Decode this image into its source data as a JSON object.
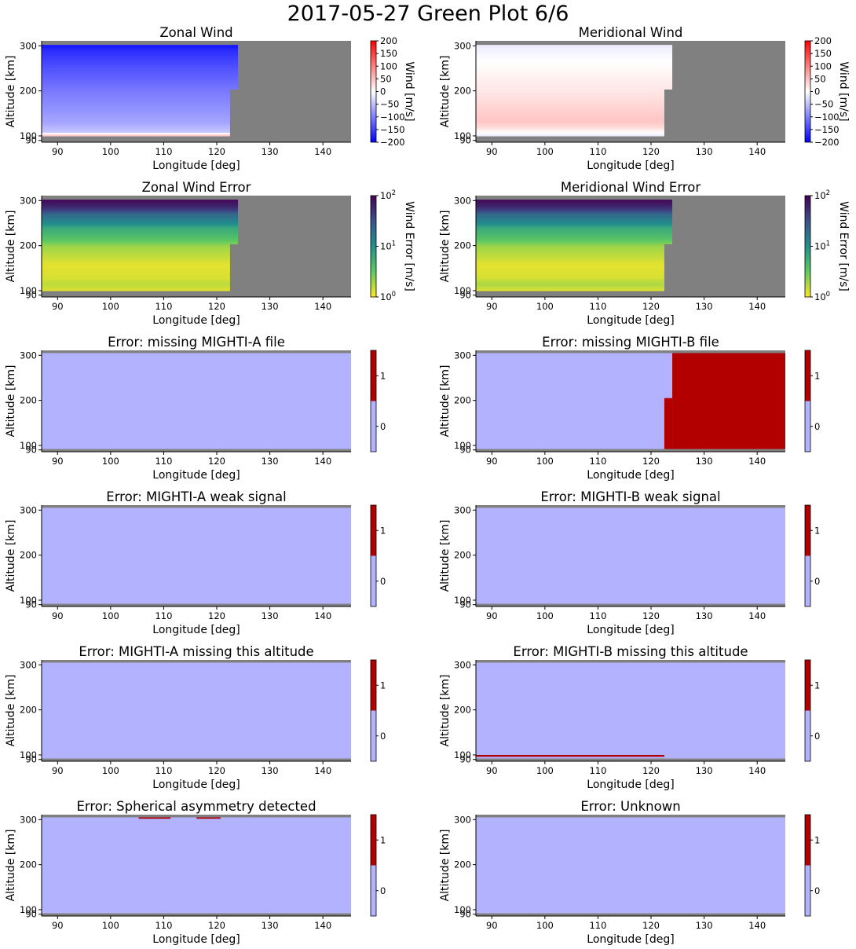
{
  "figure": {
    "title": "2017-05-27 Green Plot 6/6"
  },
  "colors": {
    "no_data": "#808080",
    "flag_zero": "#b2b2ff",
    "flag_one": "#b20000",
    "wind_neg": "#0000ff",
    "wind_zero": "#ffffff",
    "wind_pos": "#ff0000",
    "viridis": [
      "#440154",
      "#3b528b",
      "#21918c",
      "#5ec962",
      "#fde725"
    ]
  },
  "chart_data": [
    {
      "type": "heatmap",
      "title": "Zonal Wind",
      "xlabel": "Longitude [deg]",
      "ylabel": "Altitude [km]",
      "xlim": [
        87,
        145.3
      ],
      "ylim": [
        86,
        311
      ],
      "xticks": [
        90,
        100,
        110,
        120,
        130,
        140
      ],
      "yticks": [
        90,
        100,
        200,
        300
      ],
      "colorbar": {
        "label": "Wind [m/s]",
        "scale": "linear",
        "range": [
          -200,
          200
        ],
        "ticks": [
          -200,
          -150,
          -100,
          -50,
          0,
          50,
          100,
          150,
          200
        ],
        "tick_labels": [
          "−200",
          "−150",
          "−100",
          "−50",
          "0",
          "50",
          "100",
          "150",
          "200"
        ]
      },
      "data_extent": {
        "lon_start": 87,
        "lon_end_low": 122.5,
        "lon_end_high": 124,
        "alt_break": 205,
        "alt_min": 100,
        "alt_max": 302
      },
      "profile": [
        {
          "alt": 100,
          "value": 45
        },
        {
          "alt": 104,
          "value": 40
        },
        {
          "alt": 106,
          "value": -5
        },
        {
          "alt": 110,
          "value": -45
        },
        {
          "alt": 130,
          "value": -70
        },
        {
          "alt": 160,
          "value": -85
        },
        {
          "alt": 200,
          "value": -105
        },
        {
          "alt": 250,
          "value": -135
        },
        {
          "alt": 290,
          "value": -165
        },
        {
          "alt": 302,
          "value": -185
        }
      ]
    },
    {
      "type": "heatmap",
      "title": "Meridional Wind",
      "xlabel": "Longitude [deg]",
      "ylabel": "Altitude [km]",
      "xlim": [
        87,
        145.3
      ],
      "ylim": [
        86,
        311
      ],
      "xticks": [
        90,
        100,
        110,
        120,
        130,
        140
      ],
      "yticks": [
        90,
        100,
        200,
        300
      ],
      "colorbar": {
        "label": "Wind [m/s]",
        "scale": "linear",
        "range": [
          -200,
          200
        ],
        "ticks": [
          -200,
          -150,
          -100,
          -50,
          0,
          50,
          100,
          150,
          200
        ],
        "tick_labels": [
          "−200",
          "−150",
          "−100",
          "−50",
          "0",
          "50",
          "100",
          "150",
          "200"
        ]
      },
      "data_extent": {
        "lon_start": 87,
        "lon_end_low": 122.5,
        "lon_end_high": 124,
        "alt_break": 205,
        "alt_min": 100,
        "alt_max": 302
      },
      "profile": [
        {
          "alt": 100,
          "value": -20
        },
        {
          "alt": 110,
          "value": 5
        },
        {
          "alt": 120,
          "value": 30
        },
        {
          "alt": 135,
          "value": 45
        },
        {
          "alt": 160,
          "value": 35
        },
        {
          "alt": 200,
          "value": 20
        },
        {
          "alt": 250,
          "value": 5
        },
        {
          "alt": 290,
          "value": -10
        },
        {
          "alt": 302,
          "value": -15
        }
      ]
    },
    {
      "type": "heatmap",
      "title": "Zonal Wind Error",
      "xlabel": "Longitude [deg]",
      "ylabel": "Altitude [km]",
      "xlim": [
        87,
        145.3
      ],
      "ylim": [
        86,
        311
      ],
      "xticks": [
        90,
        100,
        110,
        120,
        130,
        140
      ],
      "yticks": [
        90,
        100,
        200,
        300
      ],
      "colorbar": {
        "label": "Wind Error [m/s]",
        "scale": "log",
        "range": [
          1,
          100
        ],
        "ticks": [
          1,
          10,
          100
        ],
        "tick_labels": [
          "10",
          "10",
          "10"
        ],
        "tick_exponents": [
          "0",
          "1",
          "2"
        ]
      },
      "data_extent": {
        "lon_start": 87,
        "lon_end_low": 122.5,
        "lon_end_high": 124,
        "alt_break": 205,
        "alt_min": 100,
        "alt_max": 302
      },
      "profile": [
        {
          "alt": 100,
          "value": 1.2
        },
        {
          "alt": 115,
          "value": 1.6
        },
        {
          "alt": 130,
          "value": 1.3
        },
        {
          "alt": 160,
          "value": 1.2
        },
        {
          "alt": 200,
          "value": 2.0
        },
        {
          "alt": 240,
          "value": 6
        },
        {
          "alt": 270,
          "value": 20
        },
        {
          "alt": 302,
          "value": 90
        }
      ]
    },
    {
      "type": "heatmap",
      "title": "Meridional Wind Error",
      "xlabel": "Longitude [deg]",
      "ylabel": "Altitude [km]",
      "xlim": [
        87,
        145.3
      ],
      "ylim": [
        86,
        311
      ],
      "xticks": [
        90,
        100,
        110,
        120,
        130,
        140
      ],
      "yticks": [
        90,
        100,
        200,
        300
      ],
      "colorbar": {
        "label": "Wind Error [m/s]",
        "scale": "log",
        "range": [
          1,
          100
        ],
        "ticks": [
          1,
          10,
          100
        ],
        "tick_labels": [
          "10",
          "10",
          "10"
        ],
        "tick_exponents": [
          "0",
          "1",
          "2"
        ]
      },
      "data_extent": {
        "lon_start": 87,
        "lon_end_low": 122.5,
        "lon_end_high": 124,
        "alt_break": 205,
        "alt_min": 100,
        "alt_max": 302
      },
      "profile": [
        {
          "alt": 100,
          "value": 1.2
        },
        {
          "alt": 115,
          "value": 1.8
        },
        {
          "alt": 130,
          "value": 1.3
        },
        {
          "alt": 160,
          "value": 1.2
        },
        {
          "alt": 200,
          "value": 2.0
        },
        {
          "alt": 240,
          "value": 6
        },
        {
          "alt": 270,
          "value": 20
        },
        {
          "alt": 302,
          "value": 90
        }
      ]
    },
    {
      "type": "heatmap",
      "title": "Error: missing MIGHTI-A file",
      "xlabel": "Longitude [deg]",
      "ylabel": "Altitude [km]",
      "xlim": [
        87,
        145.3
      ],
      "ylim": [
        86,
        311
      ],
      "xticks": [
        90,
        100,
        110,
        120,
        130,
        140
      ],
      "yticks": [
        90,
        100,
        200,
        300
      ],
      "colorbar": {
        "scale": "flag",
        "range": [
          -0.5,
          1.5
        ],
        "ticks": [
          0,
          1
        ],
        "tick_labels": [
          "0",
          "1"
        ]
      },
      "valid_alt": [
        92,
        305
      ],
      "flagged_regions": []
    },
    {
      "type": "heatmap",
      "title": "Error: missing MIGHTI-B file",
      "xlabel": "Longitude [deg]",
      "ylabel": "Altitude [km]",
      "xlim": [
        87,
        145.3
      ],
      "ylim": [
        86,
        311
      ],
      "xticks": [
        90,
        100,
        110,
        120,
        130,
        140
      ],
      "yticks": [
        90,
        100,
        200,
        300
      ],
      "colorbar": {
        "scale": "flag",
        "range": [
          -0.5,
          1.5
        ],
        "ticks": [
          0,
          1
        ],
        "tick_labels": [
          "0",
          "1"
        ]
      },
      "valid_alt": [
        92,
        305
      ],
      "flagged_regions": [
        {
          "lon": [
            124,
            145.3
          ],
          "alt": [
            92,
            305
          ]
        },
        {
          "lon": [
            122.5,
            124
          ],
          "alt": [
            92,
            205
          ]
        }
      ]
    },
    {
      "type": "heatmap",
      "title": "Error: MIGHTI-A weak signal",
      "xlabel": "Longitude [deg]",
      "ylabel": "Altitude [km]",
      "xlim": [
        87,
        145.3
      ],
      "ylim": [
        86,
        311
      ],
      "xticks": [
        90,
        100,
        110,
        120,
        130,
        140
      ],
      "yticks": [
        90,
        100,
        200,
        300
      ],
      "colorbar": {
        "scale": "flag",
        "range": [
          -0.5,
          1.5
        ],
        "ticks": [
          0,
          1
        ],
        "tick_labels": [
          "0",
          "1"
        ]
      },
      "valid_alt": [
        92,
        305
      ],
      "flagged_regions": []
    },
    {
      "type": "heatmap",
      "title": "Error: MIGHTI-B weak signal",
      "xlabel": "Longitude [deg]",
      "ylabel": "Altitude [km]",
      "xlim": [
        87,
        145.3
      ],
      "ylim": [
        86,
        311
      ],
      "xticks": [
        90,
        100,
        110,
        120,
        130,
        140
      ],
      "yticks": [
        90,
        100,
        200,
        300
      ],
      "colorbar": {
        "scale": "flag",
        "range": [
          -0.5,
          1.5
        ],
        "ticks": [
          0,
          1
        ],
        "tick_labels": [
          "0",
          "1"
        ]
      },
      "valid_alt": [
        92,
        305
      ],
      "flagged_regions": []
    },
    {
      "type": "heatmap",
      "title": "Error: MIGHTI-A missing this altitude",
      "xlabel": "Longitude [deg]",
      "ylabel": "Altitude [km]",
      "xlim": [
        87,
        145.3
      ],
      "ylim": [
        86,
        311
      ],
      "xticks": [
        90,
        100,
        110,
        120,
        130,
        140
      ],
      "yticks": [
        90,
        100,
        200,
        300
      ],
      "colorbar": {
        "scale": "flag",
        "range": [
          -0.5,
          1.5
        ],
        "ticks": [
          0,
          1
        ],
        "tick_labels": [
          "0",
          "1"
        ]
      },
      "valid_alt": [
        92,
        305
      ],
      "flagged_regions": []
    },
    {
      "type": "heatmap",
      "title": "Error: MIGHTI-B missing this altitude",
      "xlabel": "Longitude [deg]",
      "ylabel": "Altitude [km]",
      "xlim": [
        87,
        145.3
      ],
      "ylim": [
        86,
        311
      ],
      "xticks": [
        90,
        100,
        110,
        120,
        130,
        140
      ],
      "yticks": [
        90,
        100,
        200,
        300
      ],
      "colorbar": {
        "scale": "flag",
        "range": [
          -0.5,
          1.5
        ],
        "ticks": [
          0,
          1
        ],
        "tick_labels": [
          "0",
          "1"
        ]
      },
      "valid_alt": [
        92,
        305
      ],
      "flagged_regions": [
        {
          "lon": [
            87,
            122.5
          ],
          "alt": [
            96,
            100
          ]
        }
      ]
    },
    {
      "type": "heatmap",
      "title": "Error: Spherical asymmetry detected",
      "xlabel": "Longitude [deg]",
      "ylabel": "Altitude [km]",
      "xlim": [
        87,
        145.3
      ],
      "ylim": [
        86,
        311
      ],
      "xticks": [
        90,
        100,
        110,
        120,
        130,
        140
      ],
      "yticks": [
        90,
        100,
        200,
        300
      ],
      "colorbar": {
        "scale": "flag",
        "range": [
          -0.5,
          1.5
        ],
        "ticks": [
          0,
          1
        ],
        "tick_labels": [
          "0",
          "1"
        ]
      },
      "valid_alt": [
        92,
        305
      ],
      "flagged_regions": [
        {
          "lon": [
            105.3,
            111.3
          ],
          "alt": [
            302,
            305
          ]
        },
        {
          "lon": [
            116.2,
            120.7
          ],
          "alt": [
            302,
            305
          ]
        }
      ]
    },
    {
      "type": "heatmap",
      "title": "Error: Unknown",
      "xlabel": "Longitude [deg]",
      "ylabel": "Altitude [km]",
      "xlim": [
        87,
        145.3
      ],
      "ylim": [
        86,
        311
      ],
      "xticks": [
        90,
        100,
        110,
        120,
        130,
        140
      ],
      "yticks": [
        90,
        100,
        200,
        300
      ],
      "colorbar": {
        "scale": "flag",
        "range": [
          -0.5,
          1.5
        ],
        "ticks": [
          0,
          1
        ],
        "tick_labels": [
          "0",
          "1"
        ]
      },
      "valid_alt": [
        92,
        305
      ],
      "flagged_regions": []
    }
  ]
}
